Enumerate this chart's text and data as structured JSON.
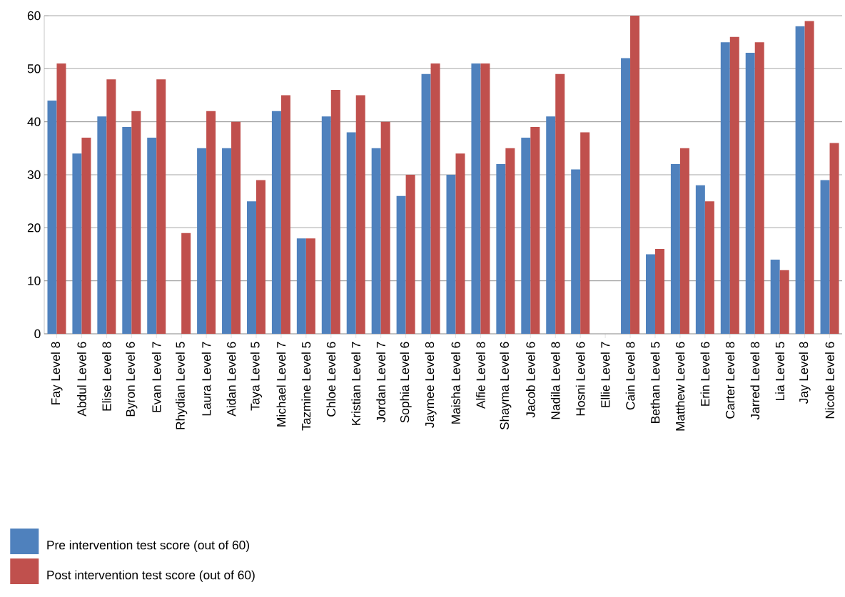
{
  "chart_data": {
    "type": "bar",
    "categories": [
      "Fay Level 8",
      "Abdul Level 6",
      "Elise Level 8",
      "Byron Level 6",
      "Evan Level 7",
      "Rhydian Level 5",
      "Laura Level 7",
      "Aidan Level 6",
      "Taya Level 5",
      "Michael Level 7",
      "Tazmine Level 5",
      "Chloe Level 6",
      "Kristian Level 7",
      "Jordan Level 7",
      "Sophia Level 6",
      "Jaymee Level 8",
      "Maisha Level 6",
      "Alfie Level 8",
      "Shayma Level 6",
      "Jacob Level 6",
      "Nadila Level 8",
      "Hosni Level 6",
      "Ellie Level 7",
      "Cain Level 8",
      "Bethan Level 5",
      "Matthew Level 6",
      "Erin Level 6",
      "Carter Level 8",
      "Jarred Level 8",
      "Lia Level 5",
      "Jay Level 8",
      "Nicole Level 6"
    ],
    "series": [
      {
        "name": "Pre intervention test score (out of 60)",
        "color": "#4f81bd",
        "values": [
          44,
          34,
          41,
          39,
          37,
          null,
          35,
          35,
          25,
          42,
          18,
          41,
          38,
          35,
          26,
          49,
          30,
          51,
          32,
          37,
          41,
          31,
          null,
          52,
          15,
          32,
          28,
          55,
          53,
          14,
          58,
          29
        ]
      },
      {
        "name": "Post intervention test score (out of 60)",
        "color": "#c0504d",
        "values": [
          51,
          37,
          48,
          42,
          48,
          19,
          42,
          40,
          29,
          45,
          18,
          46,
          45,
          40,
          30,
          51,
          34,
          51,
          35,
          39,
          49,
          38,
          null,
          60,
          16,
          35,
          25,
          56,
          55,
          12,
          59,
          36
        ]
      }
    ],
    "ylim": [
      0,
      60
    ],
    "yticks": [
      0,
      10,
      20,
      30,
      40,
      50,
      60
    ],
    "grid": "y",
    "legend": "bottom left"
  }
}
